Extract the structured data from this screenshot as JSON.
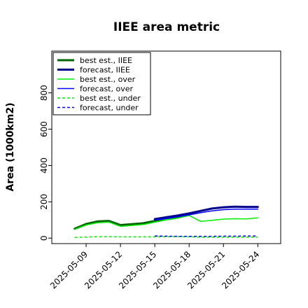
{
  "chart_data": {
    "type": "line",
    "title": "IIEE area metric",
    "xlabel": "",
    "ylabel": "Area (1000km2)",
    "ylim": [
      -30,
      1030
    ],
    "yticks": [
      0,
      200,
      400,
      600,
      800
    ],
    "ytick_labels": [
      "0",
      "200",
      "400",
      "600",
      "800"
    ],
    "x_range": [
      "2025-05-06",
      "2025-05-26"
    ],
    "xticks": [
      "2025-05-09",
      "2025-05-12",
      "2025-05-15",
      "2025-05-18",
      "2025-05-21",
      "2025-05-24"
    ],
    "xtick_labels": [
      "2025-05-09",
      "2025-05-12",
      "2025-05-15",
      "2025-05-18",
      "2025-05-21",
      "2025-05-24"
    ],
    "highlight_tick": "2025-05-15",
    "highlight_color": "#228b22",
    "grid": false,
    "legend_placement": "top-left",
    "series": [
      {
        "name": "best est., IIEE",
        "color": "#006400",
        "style": "solid",
        "width": 3,
        "x": [
          "2025-05-08",
          "2025-05-09",
          "2025-05-10",
          "2025-05-11",
          "2025-05-12",
          "2025-05-13",
          "2025-05-14",
          "2025-05-15",
          "2025-05-16",
          "2025-05-17",
          "2025-05-18"
        ],
        "values": [
          52,
          78,
          92,
          95,
          72,
          77,
          82,
          95,
          110,
          118,
          132
        ]
      },
      {
        "name": "forecast, IIEE",
        "color": "#00008b",
        "style": "solid",
        "width": 3,
        "x": [
          "2025-05-15",
          "2025-05-16",
          "2025-05-17",
          "2025-05-18",
          "2025-05-19",
          "2025-05-20",
          "2025-05-21",
          "2025-05-22",
          "2025-05-23",
          "2025-05-24"
        ],
        "values": [
          105,
          115,
          125,
          136,
          150,
          163,
          170,
          173,
          172,
          172
        ]
      },
      {
        "name": "best est., over",
        "color": "#00ee00",
        "style": "solid",
        "width": 1.5,
        "x": [
          "2025-05-08",
          "2025-05-09",
          "2025-05-10",
          "2025-05-11",
          "2025-05-12",
          "2025-05-13",
          "2025-05-14",
          "2025-05-15",
          "2025-05-16",
          "2025-05-17",
          "2025-05-18",
          "2025-05-19",
          "2025-05-20",
          "2025-05-21",
          "2025-05-22",
          "2025-05-23",
          "2025-05-24"
        ],
        "values": [
          48,
          72,
          85,
          88,
          65,
          70,
          75,
          88,
          100,
          110,
          125,
          92,
          98,
          105,
          107,
          106,
          112
        ]
      },
      {
        "name": "forecast, over",
        "color": "#0000ff",
        "style": "solid",
        "width": 1.5,
        "x": [
          "2025-05-15",
          "2025-05-16",
          "2025-05-17",
          "2025-05-18",
          "2025-05-19",
          "2025-05-20",
          "2025-05-21",
          "2025-05-22",
          "2025-05-23",
          "2025-05-24"
        ],
        "values": [
          100,
          108,
          118,
          128,
          140,
          150,
          157,
          160,
          160,
          160
        ]
      },
      {
        "name": "best est., under",
        "color": "#00ee00",
        "style": "dashed",
        "width": 1.5,
        "x": [
          "2025-05-08",
          "2025-05-09",
          "2025-05-10",
          "2025-05-11",
          "2025-05-12",
          "2025-05-13",
          "2025-05-14",
          "2025-05-15",
          "2025-05-16",
          "2025-05-17",
          "2025-05-18",
          "2025-05-19",
          "2025-05-20",
          "2025-05-21",
          "2025-05-22",
          "2025-05-23",
          "2025-05-24"
        ],
        "values": [
          4,
          6,
          8,
          8,
          7,
          7,
          7,
          7,
          8,
          8,
          7,
          5,
          5,
          5,
          5,
          5,
          5
        ]
      },
      {
        "name": "forecast, under",
        "color": "#0000ff",
        "style": "dashed",
        "width": 1.5,
        "x": [
          "2025-05-15",
          "2025-05-16",
          "2025-05-17",
          "2025-05-18",
          "2025-05-19",
          "2025-05-20",
          "2025-05-21",
          "2025-05-22",
          "2025-05-23",
          "2025-05-24"
        ],
        "values": [
          12,
          11,
          10,
          10,
          10,
          10,
          11,
          11,
          12,
          12
        ]
      }
    ]
  }
}
